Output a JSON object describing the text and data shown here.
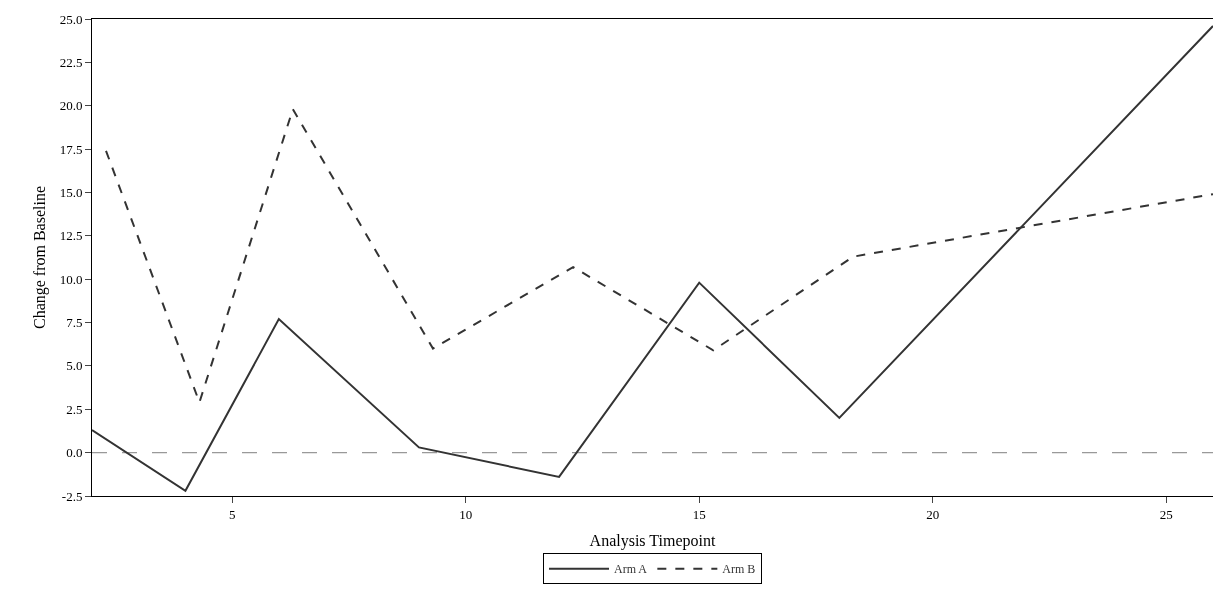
{
  "chart_data": {
    "type": "line",
    "xlabel": "Analysis Timepoint",
    "ylabel": "Change from Baseline",
    "xlim": [
      2,
      26
    ],
    "xticks": [
      5,
      10,
      15,
      20,
      25
    ],
    "ylim": [
      -2.5,
      25
    ],
    "yticks": [
      {
        "value": -2.5,
        "label": "-2.5"
      },
      {
        "value": 0,
        "label": "0.0"
      },
      {
        "value": 2.5,
        "label": "2.5"
      },
      {
        "value": 5,
        "label": "5.0"
      },
      {
        "value": 7.5,
        "label": "7.5"
      },
      {
        "value": 10,
        "label": "10.0"
      },
      {
        "value": 12.5,
        "label": "12.5"
      },
      {
        "value": 15,
        "label": "15.0"
      },
      {
        "value": 17.5,
        "label": "17.5"
      },
      {
        "value": 20,
        "label": "20.0"
      },
      {
        "value": 22.5,
        "label": "22.5"
      },
      {
        "value": 25,
        "label": "25.0"
      }
    ],
    "series": [
      {
        "name": "Arm A",
        "color": "#333333",
        "line_style": "solid",
        "x": [
          2,
          4,
          6,
          9,
          12,
          15,
          18,
          26
        ],
        "values": [
          1.3,
          -2.2,
          7.7,
          0.3,
          -1.4,
          9.8,
          2.0,
          24.6
        ]
      },
      {
        "name": "Arm B",
        "color": "#333333",
        "line_style": "dashed",
        "x": [
          2.3,
          4.3,
          6.3,
          9.3,
          12.3,
          15.3,
          18.3,
          26
        ],
        "values": [
          17.4,
          2.9,
          19.8,
          6.0,
          10.7,
          5.9,
          11.3,
          14.9
        ]
      }
    ],
    "ref_lines": [
      {
        "axis": "y",
        "value": 0,
        "color": "#999999",
        "line_style": "dashed"
      }
    ],
    "grid": false,
    "legend": "bottom",
    "marker": "none"
  }
}
